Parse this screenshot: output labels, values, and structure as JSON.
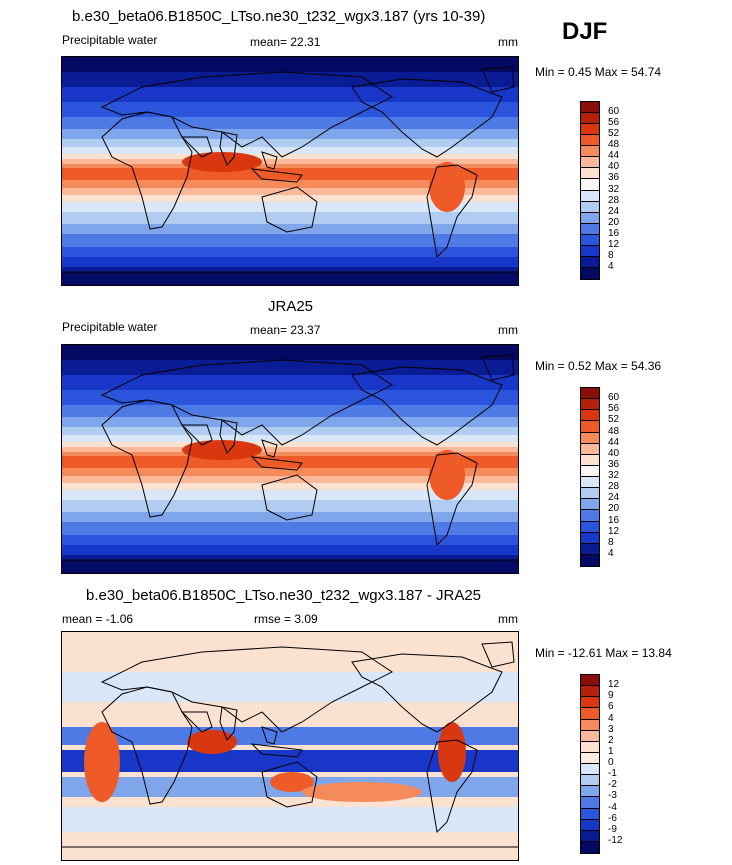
{
  "season": "DJF",
  "panels": [
    {
      "title": "b.e30_beta06.B1850C_LTso.ne30_t232_wgx3.187 (yrs 10-39)",
      "left_label": "Precipitable water",
      "center_label": "mean=  22.31",
      "units": "mm",
      "minmax": "Min =   0.45 Max =  54.74"
    },
    {
      "title": "JRA25",
      "left_label": "Precipitable water",
      "center_label": "mean=  23.37",
      "units": "mm",
      "minmax": "Min =   0.52 Max =  54.36"
    },
    {
      "title": "b.e30_beta06.B1850C_LTso.ne30_t232_wgx3.187 - JRA25",
      "left_label": "mean =  -1.06",
      "center_label": "rmse =    3.09",
      "units": "mm",
      "minmax": "Min = -12.61 Max =  13.84"
    }
  ],
  "colorbars": {
    "abs_levels": [
      "60",
      "56",
      "52",
      "48",
      "44",
      "40",
      "36",
      "32",
      "28",
      "24",
      "20",
      "16",
      "12",
      "8",
      "4"
    ],
    "abs_colors": [
      "#8a0f0a",
      "#b3200c",
      "#d8370f",
      "#ee5a28",
      "#f58a5a",
      "#f9b99a",
      "#fbe1cf",
      "#fbf7f4",
      "#d9e6f7",
      "#b1ccf1",
      "#7fa6ea",
      "#4e7ae5",
      "#2a55dc",
      "#1837c8",
      "#0a1b96",
      "#030a64"
    ],
    "diff_levels": [
      "12",
      "9",
      "6",
      "4",
      "3",
      "2",
      "1",
      "0",
      "-1",
      "-2",
      "-3",
      "-4",
      "-6",
      "-9",
      "-12"
    ],
    "diff_colors": [
      "#8a0f0a",
      "#b3200c",
      "#d8370f",
      "#ee5a28",
      "#f58a5a",
      "#f9b99a",
      "#fbe1cf",
      "#fbece2",
      "#d9e6f7",
      "#b1ccf1",
      "#7fa6ea",
      "#4e7ae5",
      "#2a55dc",
      "#1837c8",
      "#0a1b96",
      "#030a64"
    ]
  },
  "chart_data": [
    {
      "type": "heatmap",
      "title": "b.e30_beta06.B1850C_LTso.ne30_t232_wgx3.187 (yrs 10-39)",
      "subtitle": "DJF",
      "field": "Precipitable water",
      "units": "mm",
      "mean": 22.31,
      "min": 0.45,
      "max": 54.74,
      "contour_levels": [
        4,
        8,
        12,
        16,
        20,
        24,
        28,
        32,
        36,
        40,
        44,
        48,
        52,
        56,
        60
      ]
    },
    {
      "type": "heatmap",
      "title": "JRA25",
      "field": "Precipitable water",
      "units": "mm",
      "mean": 23.37,
      "min": 0.52,
      "max": 54.36,
      "contour_levels": [
        4,
        8,
        12,
        16,
        20,
        24,
        28,
        32,
        36,
        40,
        44,
        48,
        52,
        56,
        60
      ]
    },
    {
      "type": "heatmap",
      "title": "b.e30_beta06.B1850C_LTso.ne30_t232_wgx3.187 - JRA25",
      "units": "mm",
      "mean": -1.06,
      "rmse": 3.09,
      "min": -12.61,
      "max": 13.84,
      "contour_levels": [
        -12,
        -9,
        -6,
        -4,
        -3,
        -2,
        -1,
        0,
        1,
        2,
        3,
        4,
        6,
        9,
        12
      ]
    }
  ]
}
